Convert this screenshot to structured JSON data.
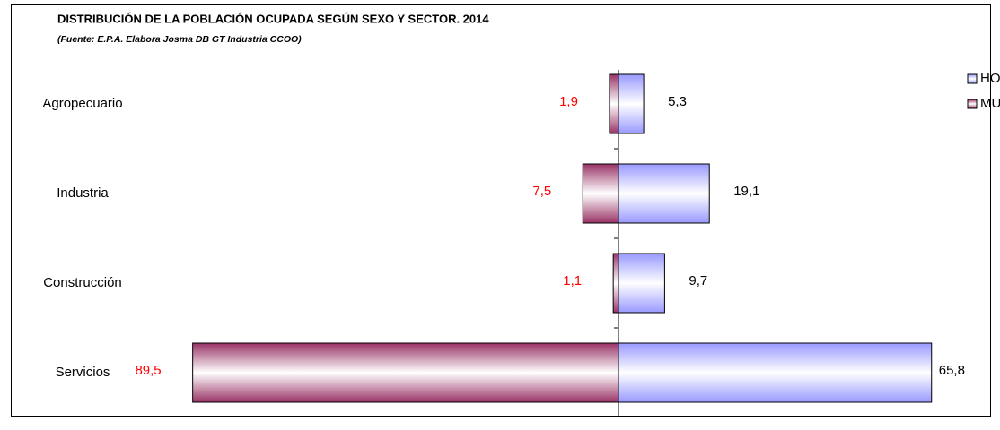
{
  "chart_data": {
    "type": "diverging-bar",
    "orientation": "horizontal",
    "title": "DISTRIBUCIÓN DE LA POBLACIÓN OCUPADA SEGÚN SEXO Y SECTOR. 2014",
    "subtitle": "(Fuente: E.P.A. Elabora Josma DB GT Industria CCOO)",
    "categories": [
      "Agropecuario",
      "Industria",
      "Construcción",
      "Servicios"
    ],
    "xlim": [
      -125,
      75
    ],
    "legend": "upper right",
    "series": [
      {
        "name": "HOMBRES",
        "color": "#9999ff",
        "side": "right",
        "label_color": "#000000",
        "values": [
          5.3,
          19.1,
          9.7,
          65.8
        ],
        "value_labels": [
          "5,3",
          "19,1",
          "9,7",
          "65,8"
        ]
      },
      {
        "name": "MUJERES",
        "color": "#993366",
        "side": "left",
        "label_color": "#ff0000",
        "values": [
          1.9,
          7.5,
          1.1,
          89.5
        ],
        "value_labels": [
          "1,9",
          "7,5",
          "1,1",
          "89,5"
        ]
      }
    ]
  }
}
